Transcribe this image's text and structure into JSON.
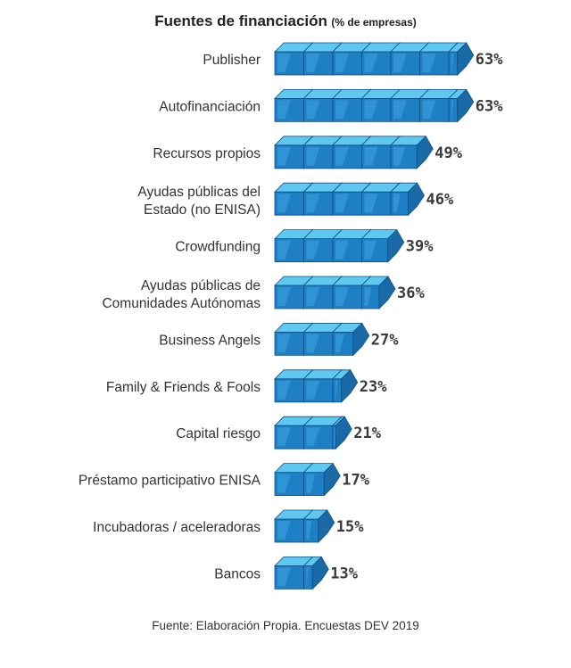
{
  "chart_data": {
    "type": "bar",
    "title": "Fuentes de financiación",
    "subtitle": "(% de empresas)",
    "categories": [
      [
        "Publisher"
      ],
      [
        "Autofinanciación"
      ],
      [
        "Recursos propios"
      ],
      [
        "Ayudas públicas del",
        "Estado (no ENISA)"
      ],
      [
        "Crowdfunding"
      ],
      [
        "Ayudas públicas de",
        "Comunidades Autónomas"
      ],
      [
        "Business Angels"
      ],
      [
        "Family & Friends & Fools"
      ],
      [
        "Capital riesgo"
      ],
      [
        "Préstamo participativo ENISA"
      ],
      [
        "Incubadoras / aceleradoras"
      ],
      [
        "Bancos"
      ]
    ],
    "values": [
      63,
      63,
      49,
      46,
      39,
      36,
      27,
      23,
      21,
      17,
      15,
      13
    ],
    "value_labels": [
      "63%",
      "63%",
      "49%",
      "46%",
      "39%",
      "36%",
      "27%",
      "23%",
      "21%",
      "17%",
      "15%",
      "13%"
    ],
    "colors": {
      "front": "#1f7fc4",
      "top": "#5fc8f0",
      "side": "#1a6aa8"
    }
  },
  "source": "Fuente: Elaboración Propia. Encuestas DEV 2019"
}
